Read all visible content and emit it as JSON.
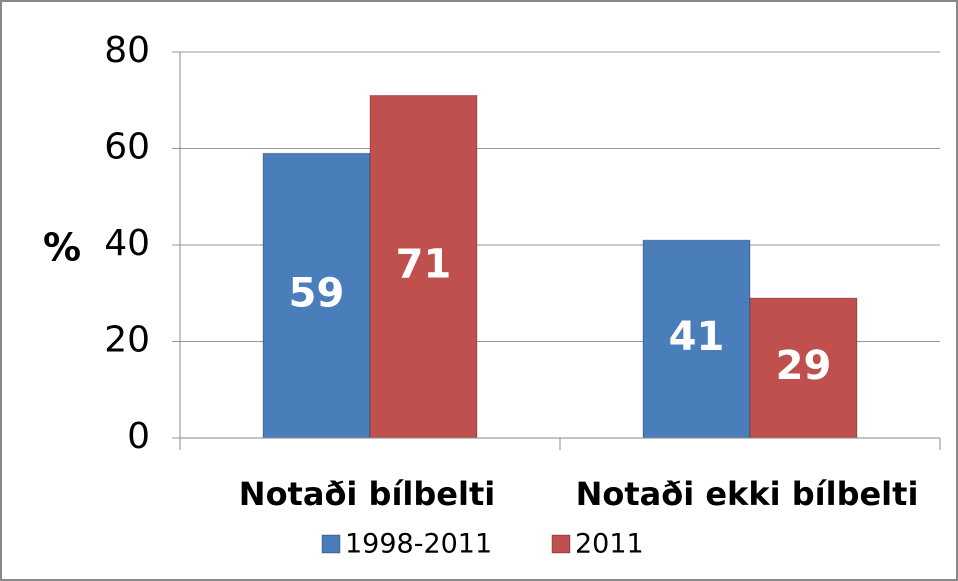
{
  "chart_data": {
    "type": "bar",
    "y_label": "%",
    "categories": [
      "Notaði bílbelti",
      "Notaði ekki bílbelti"
    ],
    "series": [
      {
        "name": "1998-2011",
        "color": "#4a7ebb",
        "values": [
          59,
          41
        ]
      },
      {
        "name": "2011",
        "color": "#c0504d",
        "values": [
          71,
          29
        ]
      }
    ],
    "ylim": [
      0,
      80
    ],
    "yticks": [
      0,
      20,
      40,
      60,
      80
    ],
    "grid": true,
    "legend": "bottom"
  }
}
